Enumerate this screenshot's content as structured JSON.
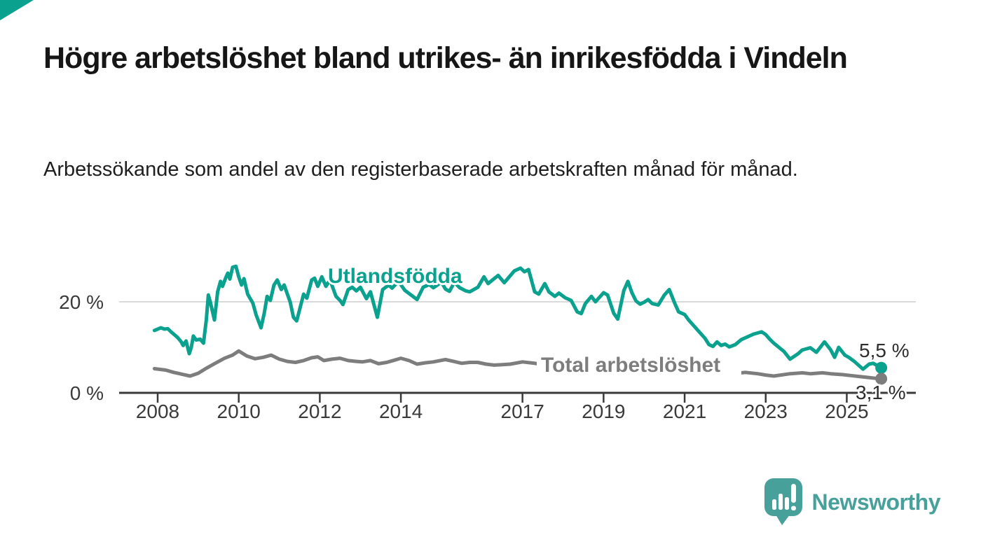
{
  "branding": {
    "logo_text": "Newsworthy",
    "logo_color": "#47a09a",
    "corner_accent_color": "#0aa18e"
  },
  "colors": {
    "series_foreign_born": "#0aa18e",
    "series_total": "#7d7d7d",
    "axis": "#3a3a3a",
    "gridline": "#dadada",
    "end_label_text": "#2e2e2e",
    "title_text": "#161616"
  },
  "chart_data": {
    "type": "line",
    "title": "Högre arbetslöshet bland utrikes- än inrikesfödda i Vindeln",
    "subtitle": "Arbetssökande som andel av den registerbaserade arbetskraften månad för månad.",
    "x_unit": "decimal year (monthly observations)",
    "xlim": [
      2007.05,
      2026.7
    ],
    "ylim": [
      0,
      31
    ],
    "grid": "single horizontal gridline at 20 %",
    "legend_position": "inline labels next to lines",
    "y_ticks_pct": [
      0,
      20
    ],
    "y_tick_labels": [
      "0 %",
      "20 %"
    ],
    "x_tick_years": [
      2008,
      2010,
      2012,
      2014,
      2017,
      2019,
      2021,
      2023,
      2025
    ],
    "x_tick_labels": [
      "2008",
      "2010",
      "2012",
      "2014",
      "2017",
      "2019",
      "2021",
      "2023",
      "2025"
    ],
    "series": [
      {
        "name": "Utlandsfödda",
        "color": "#0aa18e",
        "end_value": 5.5,
        "end_label": "5,5 %",
        "points": [
          [
            2007.92,
            13.7
          ],
          [
            2008.08,
            14.3
          ],
          [
            2008.17,
            14.0
          ],
          [
            2008.25,
            14.1
          ],
          [
            2008.33,
            13.4
          ],
          [
            2008.42,
            12.7
          ],
          [
            2008.5,
            12.1
          ],
          [
            2008.58,
            11.2
          ],
          [
            2008.63,
            10.4
          ],
          [
            2008.7,
            11.4
          ],
          [
            2008.78,
            8.6
          ],
          [
            2008.83,
            10.0
          ],
          [
            2008.88,
            12.5
          ],
          [
            2008.95,
            11.6
          ],
          [
            2009.05,
            11.8
          ],
          [
            2009.13,
            10.9
          ],
          [
            2009.2,
            16.0
          ],
          [
            2009.25,
            21.5
          ],
          [
            2009.3,
            19.9
          ],
          [
            2009.4,
            16.0
          ],
          [
            2009.48,
            22.2
          ],
          [
            2009.55,
            24.5
          ],
          [
            2009.6,
            23.4
          ],
          [
            2009.68,
            25.3
          ],
          [
            2009.73,
            26.3
          ],
          [
            2009.78,
            25.0
          ],
          [
            2009.85,
            27.6
          ],
          [
            2009.93,
            27.8
          ],
          [
            2010.0,
            25.5
          ],
          [
            2010.07,
            23.7
          ],
          [
            2010.13,
            25.1
          ],
          [
            2010.22,
            21.7
          ],
          [
            2010.35,
            19.7
          ],
          [
            2010.43,
            17.1
          ],
          [
            2010.55,
            14.3
          ],
          [
            2010.63,
            17.5
          ],
          [
            2010.7,
            21.2
          ],
          [
            2010.78,
            20.3
          ],
          [
            2010.87,
            23.7
          ],
          [
            2010.95,
            24.8
          ],
          [
            2011.05,
            22.7
          ],
          [
            2011.12,
            23.7
          ],
          [
            2011.27,
            19.9
          ],
          [
            2011.35,
            16.6
          ],
          [
            2011.43,
            15.8
          ],
          [
            2011.6,
            21.7
          ],
          [
            2011.68,
            20.8
          ],
          [
            2011.8,
            24.8
          ],
          [
            2011.87,
            25.2
          ],
          [
            2011.95,
            23.4
          ],
          [
            2012.05,
            25.5
          ],
          [
            2012.15,
            23.4
          ],
          [
            2012.25,
            24.8
          ],
          [
            2012.4,
            21.2
          ],
          [
            2012.5,
            20.3
          ],
          [
            2012.57,
            19.4
          ],
          [
            2012.7,
            22.7
          ],
          [
            2012.8,
            23.2
          ],
          [
            2012.9,
            22.4
          ],
          [
            2013.0,
            23.2
          ],
          [
            2013.15,
            20.7
          ],
          [
            2013.25,
            22.2
          ],
          [
            2013.42,
            16.6
          ],
          [
            2013.55,
            22.7
          ],
          [
            2013.7,
            23.7
          ],
          [
            2013.78,
            23.0
          ],
          [
            2013.94,
            24.5
          ],
          [
            2014.1,
            22.5
          ],
          [
            2014.25,
            21.5
          ],
          [
            2014.4,
            20.5
          ],
          [
            2014.55,
            23.2
          ],
          [
            2014.7,
            23.8
          ],
          [
            2014.8,
            23.1
          ],
          [
            2015.0,
            24.3
          ],
          [
            2015.1,
            22.8
          ],
          [
            2015.2,
            22.3
          ],
          [
            2015.32,
            24.3
          ],
          [
            2015.45,
            23.1
          ],
          [
            2015.6,
            22.4
          ],
          [
            2015.7,
            22.2
          ],
          [
            2015.9,
            23.2
          ],
          [
            2016.05,
            25.5
          ],
          [
            2016.15,
            24.0
          ],
          [
            2016.4,
            25.8
          ],
          [
            2016.55,
            24.2
          ],
          [
            2016.8,
            26.8
          ],
          [
            2016.95,
            27.4
          ],
          [
            2017.05,
            26.6
          ],
          [
            2017.15,
            27.1
          ],
          [
            2017.3,
            22.2
          ],
          [
            2017.4,
            21.7
          ],
          [
            2017.55,
            24.0
          ],
          [
            2017.65,
            22.2
          ],
          [
            2017.8,
            21.2
          ],
          [
            2017.9,
            21.9
          ],
          [
            2018.05,
            20.9
          ],
          [
            2018.2,
            20.3
          ],
          [
            2018.35,
            17.8
          ],
          [
            2018.45,
            17.4
          ],
          [
            2018.55,
            19.6
          ],
          [
            2018.7,
            21.2
          ],
          [
            2018.8,
            20.0
          ],
          [
            2019.0,
            22.0
          ],
          [
            2019.1,
            21.5
          ],
          [
            2019.25,
            17.5
          ],
          [
            2019.35,
            16.2
          ],
          [
            2019.5,
            22.5
          ],
          [
            2019.6,
            24.5
          ],
          [
            2019.7,
            22.0
          ],
          [
            2019.8,
            20.2
          ],
          [
            2019.9,
            19.5
          ],
          [
            2020.0,
            19.9
          ],
          [
            2020.1,
            20.5
          ],
          [
            2020.2,
            19.6
          ],
          [
            2020.35,
            19.3
          ],
          [
            2020.5,
            21.5
          ],
          [
            2020.62,
            22.7
          ],
          [
            2020.75,
            19.8
          ],
          [
            2020.85,
            17.8
          ],
          [
            2021.0,
            17.2
          ],
          [
            2021.1,
            16.0
          ],
          [
            2021.2,
            15.0
          ],
          [
            2021.35,
            13.5
          ],
          [
            2021.5,
            12.0
          ],
          [
            2021.6,
            10.6
          ],
          [
            2021.7,
            10.2
          ],
          [
            2021.8,
            11.2
          ],
          [
            2021.9,
            10.4
          ],
          [
            2022.0,
            10.7
          ],
          [
            2022.1,
            10.1
          ],
          [
            2022.25,
            10.6
          ],
          [
            2022.4,
            11.7
          ],
          [
            2022.55,
            12.3
          ],
          [
            2022.7,
            12.9
          ],
          [
            2022.9,
            13.4
          ],
          [
            2023.0,
            12.8
          ],
          [
            2023.1,
            11.8
          ],
          [
            2023.2,
            10.9
          ],
          [
            2023.45,
            9.1
          ],
          [
            2023.6,
            7.4
          ],
          [
            2023.8,
            8.6
          ],
          [
            2023.9,
            9.4
          ],
          [
            2024.1,
            9.9
          ],
          [
            2024.25,
            8.9
          ],
          [
            2024.45,
            11.2
          ],
          [
            2024.6,
            9.5
          ],
          [
            2024.7,
            7.8
          ],
          [
            2024.8,
            10.0
          ],
          [
            2024.95,
            8.3
          ],
          [
            2025.05,
            7.8
          ],
          [
            2025.2,
            6.8
          ],
          [
            2025.4,
            5.2
          ],
          [
            2025.55,
            6.3
          ],
          [
            2025.65,
            6.5
          ],
          [
            2025.85,
            5.5
          ]
        ]
      },
      {
        "name": "Total arbetslöshet",
        "color": "#7d7d7d",
        "end_value": 3.1,
        "end_label": "3,1 %",
        "note": "line hidden behind its label between ~2017.5 and ~2022.2",
        "points": [
          [
            2007.92,
            5.3
          ],
          [
            2008.2,
            5.0
          ],
          [
            2008.4,
            4.5
          ],
          [
            2008.6,
            4.1
          ],
          [
            2008.8,
            3.7
          ],
          [
            2009.0,
            4.3
          ],
          [
            2009.2,
            5.4
          ],
          [
            2009.4,
            6.4
          ],
          [
            2009.65,
            7.6
          ],
          [
            2009.85,
            8.3
          ],
          [
            2010.0,
            9.2
          ],
          [
            2010.2,
            8.1
          ],
          [
            2010.4,
            7.5
          ],
          [
            2010.6,
            7.8
          ],
          [
            2010.8,
            8.3
          ],
          [
            2011.0,
            7.4
          ],
          [
            2011.2,
            6.9
          ],
          [
            2011.4,
            6.7
          ],
          [
            2011.6,
            7.1
          ],
          [
            2011.8,
            7.7
          ],
          [
            2011.95,
            7.9
          ],
          [
            2012.1,
            7.1
          ],
          [
            2012.3,
            7.4
          ],
          [
            2012.5,
            7.6
          ],
          [
            2012.7,
            7.1
          ],
          [
            2012.9,
            6.9
          ],
          [
            2013.05,
            6.8
          ],
          [
            2013.25,
            7.1
          ],
          [
            2013.45,
            6.4
          ],
          [
            2013.65,
            6.7
          ],
          [
            2013.85,
            7.2
          ],
          [
            2014.0,
            7.6
          ],
          [
            2014.2,
            7.1
          ],
          [
            2014.4,
            6.3
          ],
          [
            2014.6,
            6.6
          ],
          [
            2014.8,
            6.8
          ],
          [
            2015.1,
            7.3
          ],
          [
            2015.3,
            6.9
          ],
          [
            2015.5,
            6.5
          ],
          [
            2015.7,
            6.7
          ],
          [
            2015.9,
            6.7
          ],
          [
            2016.1,
            6.3
          ],
          [
            2016.3,
            6.1
          ],
          [
            2016.5,
            6.2
          ],
          [
            2016.7,
            6.3
          ],
          [
            2017.0,
            6.8
          ],
          [
            2017.3,
            6.5
          ],
          [
            2017.5,
            6.2
          ],
          [
            2018.0,
            5.9
          ],
          [
            2018.5,
            5.6
          ],
          [
            2019.0,
            5.4
          ],
          [
            2019.5,
            5.2
          ],
          [
            2020.0,
            5.1
          ],
          [
            2020.5,
            5.0
          ],
          [
            2021.0,
            4.8
          ],
          [
            2021.5,
            4.7
          ],
          [
            2022.0,
            4.6
          ],
          [
            2022.3,
            4.3
          ],
          [
            2022.5,
            4.5
          ],
          [
            2022.8,
            4.2
          ],
          [
            2023.0,
            3.9
          ],
          [
            2023.2,
            3.7
          ],
          [
            2023.6,
            4.2
          ],
          [
            2023.9,
            4.4
          ],
          [
            2024.1,
            4.2
          ],
          [
            2024.4,
            4.4
          ],
          [
            2024.6,
            4.2
          ],
          [
            2024.9,
            4.0
          ],
          [
            2025.1,
            3.8
          ],
          [
            2025.3,
            3.6
          ],
          [
            2025.5,
            3.4
          ],
          [
            2025.7,
            3.2
          ],
          [
            2025.85,
            3.1
          ]
        ]
      }
    ]
  }
}
